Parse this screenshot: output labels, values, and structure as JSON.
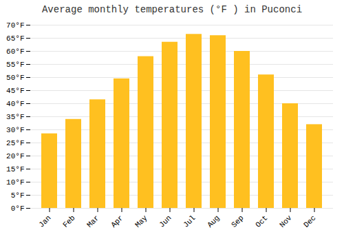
{
  "chart_data": {
    "type": "bar",
    "title": "Average monthly temperatures (°F ) in Puconci",
    "categories": [
      "Jan",
      "Feb",
      "Mar",
      "Apr",
      "May",
      "Jun",
      "Jul",
      "Aug",
      "Sep",
      "Oct",
      "Nov",
      "Dec"
    ],
    "values": [
      28.5,
      34.0,
      41.5,
      49.5,
      58.0,
      63.5,
      66.5,
      66.0,
      60.0,
      51.0,
      40.0,
      32.0
    ],
    "color": "#FFC020",
    "ylim": [
      0,
      70
    ],
    "yticks": [
      {
        "value": 0,
        "label": "0°F"
      },
      {
        "value": 5,
        "label": "5°F"
      },
      {
        "value": 10,
        "label": "10°F"
      },
      {
        "value": 15,
        "label": "15°F"
      },
      {
        "value": 20,
        "label": "20°F"
      },
      {
        "value": 25,
        "label": "25°F"
      },
      {
        "value": 30,
        "label": "30°F"
      },
      {
        "value": 35,
        "label": "35°F"
      },
      {
        "value": 40,
        "label": "40°F"
      },
      {
        "value": 45,
        "label": "45°F"
      },
      {
        "value": 50,
        "label": "50°F"
      },
      {
        "value": 55,
        "label": "55°F"
      },
      {
        "value": 60,
        "label": "60°F"
      },
      {
        "value": 65,
        "label": "65°F"
      },
      {
        "value": 70,
        "label": "70°F"
      }
    ],
    "grid": true
  }
}
